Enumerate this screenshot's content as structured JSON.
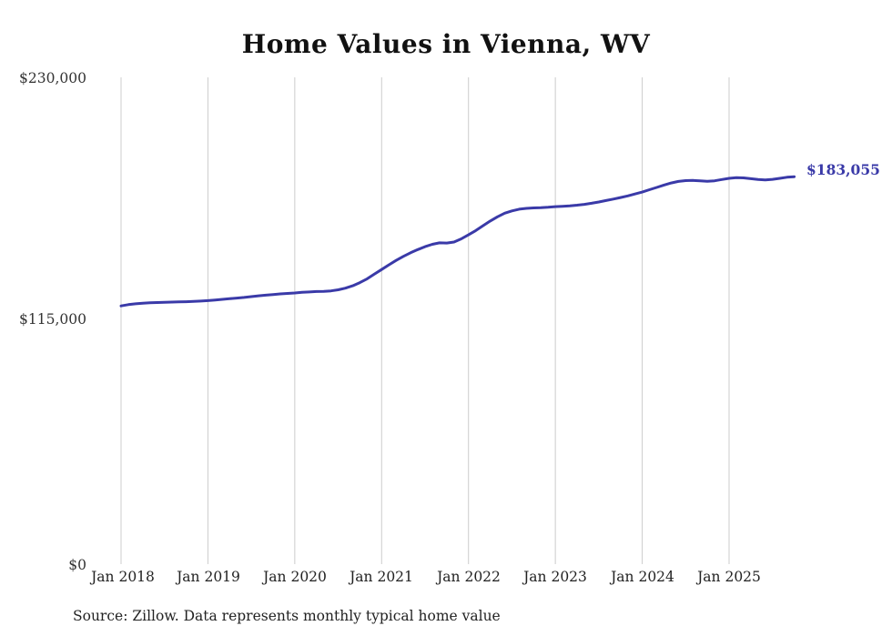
{
  "title": "Home Values in Vienna, WV",
  "source": "Source: Zillow. Data represents monthly typical home value",
  "colors": {
    "line": "#3a3aa8",
    "grid": "#cccccc",
    "title_text": "#111111",
    "axis_text": "#333333"
  },
  "chart_data": {
    "type": "line",
    "title": "Home Values in Vienna, WV",
    "xlabel": "",
    "ylabel": "",
    "unit": "USD",
    "ylim": [
      0,
      230000
    ],
    "grid": "vertical-only",
    "legend": "none",
    "end_label": "$183,055",
    "final_value": 183055,
    "x_start_month": "Jan 2018",
    "x_end_month": "Oct 2025",
    "y_ticks": [
      {
        "label": "$230,000",
        "value": 230000
      },
      {
        "label": "$115,000",
        "value": 115000
      },
      {
        "label": "$0",
        "value": 0
      }
    ],
    "x_tick_labels": [
      "Jan 2018",
      "Jan 2019",
      "Jan 2020",
      "Jan 2021",
      "Jan 2022",
      "Jan 2023",
      "Jan 2024",
      "Jan 2025"
    ],
    "series_name": "Typical home value (monthly)",
    "values": [
      122000,
      122600,
      123000,
      123300,
      123500,
      123600,
      123700,
      123800,
      123900,
      124000,
      124100,
      124300,
      124500,
      124800,
      125100,
      125400,
      125700,
      126000,
      126400,
      126800,
      127100,
      127400,
      127700,
      127900,
      128100,
      128400,
      128600,
      128800,
      128900,
      129100,
      129600,
      130400,
      131500,
      133000,
      134800,
      137000,
      139200,
      141400,
      143500,
      145400,
      147100,
      148600,
      150000,
      151100,
      151800,
      151700,
      152200,
      153700,
      155600,
      157600,
      159900,
      162100,
      164100,
      165800,
      166900,
      167700,
      168100,
      168300,
      168400,
      168600,
      168900,
      169100,
      169300,
      169600,
      170000,
      170500,
      171100,
      171800,
      172500,
      173200,
      174000,
      174900,
      175800,
      176900,
      178000,
      179100,
      180100,
      180800,
      181200,
      181300,
      181100,
      180900,
      181100,
      181700,
      182300,
      182600,
      182500,
      182100,
      181700,
      181500,
      181800,
      182300,
      182800,
      183055
    ]
  }
}
